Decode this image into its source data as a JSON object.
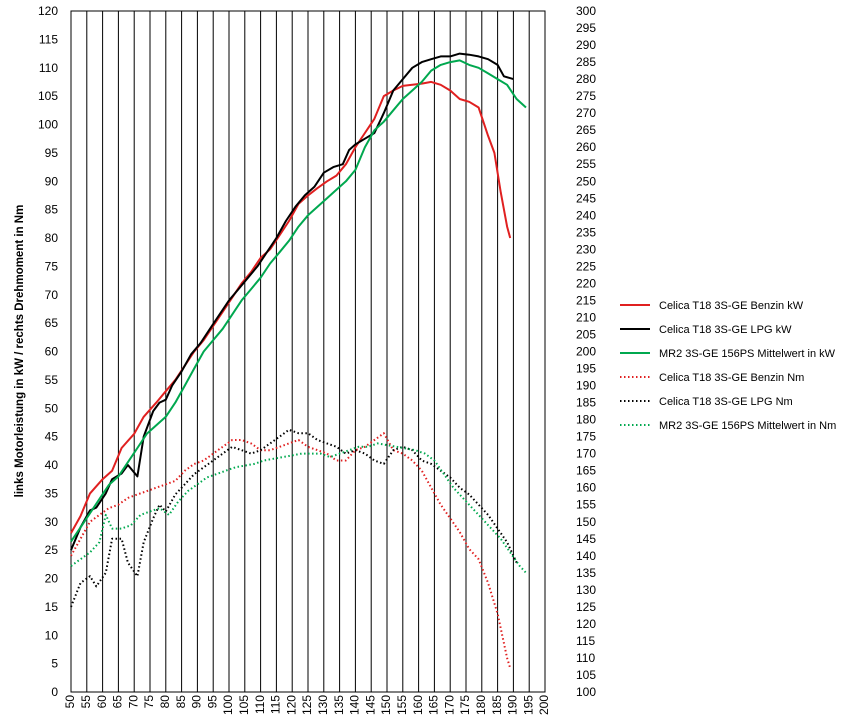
{
  "chart_data": {
    "type": "line",
    "title": "",
    "xlabel": "",
    "ylabel": "links Motorleistung in kW / rechts Drehmoment in Nm",
    "xlim": [
      50,
      200
    ],
    "ylim": [
      0,
      120
    ],
    "y2lim": [
      100,
      300
    ],
    "x_ticks": [
      50,
      55,
      60,
      65,
      70,
      75,
      80,
      85,
      90,
      95,
      100,
      105,
      110,
      115,
      120,
      125,
      130,
      135,
      140,
      145,
      150,
      155,
      160,
      165,
      170,
      175,
      180,
      185,
      190,
      195,
      200
    ],
    "y_ticks": [
      0,
      5,
      10,
      15,
      20,
      25,
      30,
      35,
      40,
      45,
      50,
      55,
      60,
      65,
      70,
      75,
      80,
      85,
      90,
      95,
      100,
      105,
      110,
      115,
      120
    ],
    "y2_ticks": [
      100,
      105,
      110,
      115,
      120,
      125,
      130,
      135,
      140,
      145,
      150,
      155,
      160,
      165,
      170,
      175,
      180,
      185,
      190,
      195,
      200,
      205,
      210,
      215,
      220,
      225,
      230,
      235,
      240,
      245,
      250,
      255,
      260,
      265,
      270,
      275,
      280,
      285,
      290,
      295,
      300
    ],
    "grid": "vertical",
    "legend_position": "right",
    "series": [
      {
        "name": "Celica T18 3S-GE Benzin kW",
        "axis": "left",
        "color": "#e02020",
        "style": "solid",
        "points": [
          [
            50,
            28
          ],
          [
            53,
            31
          ],
          [
            56,
            35
          ],
          [
            60,
            37.5
          ],
          [
            63,
            39
          ],
          [
            66,
            43
          ],
          [
            70,
            45.5
          ],
          [
            73,
            48.5
          ],
          [
            77,
            51
          ],
          [
            80,
            53
          ],
          [
            83,
            55
          ],
          [
            86,
            57.5
          ],
          [
            89,
            60
          ],
          [
            92,
            62
          ],
          [
            95,
            64.5
          ],
          [
            98,
            67
          ],
          [
            101,
            69.5
          ],
          [
            104,
            72
          ],
          [
            107,
            74
          ],
          [
            110,
            76.5
          ],
          [
            113,
            78
          ],
          [
            116,
            80.5
          ],
          [
            119,
            83
          ],
          [
            122,
            86
          ],
          [
            125,
            87.5
          ],
          [
            128,
            88.8
          ],
          [
            131,
            90
          ],
          [
            134,
            91
          ],
          [
            137,
            93
          ],
          [
            140,
            96
          ],
          [
            143,
            98.5
          ],
          [
            146,
            101
          ],
          [
            149,
            105
          ],
          [
            152,
            106
          ],
          [
            155,
            106.8
          ],
          [
            158,
            107
          ],
          [
            161,
            107.2
          ],
          [
            164,
            107.5
          ],
          [
            167,
            107
          ],
          [
            170,
            106
          ],
          [
            173,
            104.5
          ],
          [
            176,
            104
          ],
          [
            179,
            103
          ],
          [
            182,
            98
          ],
          [
            184,
            95
          ],
          [
            186,
            88
          ],
          [
            188,
            82
          ],
          [
            189,
            80
          ]
        ]
      },
      {
        "name": "Celica T18 3S-GE LPG kW",
        "axis": "left",
        "color": "#000000",
        "style": "solid",
        "points": [
          [
            50,
            25
          ],
          [
            53,
            29
          ],
          [
            56,
            32
          ],
          [
            58,
            32.5
          ],
          [
            61,
            35
          ],
          [
            63,
            37.5
          ],
          [
            66,
            38.5
          ],
          [
            68,
            40
          ],
          [
            71,
            38
          ],
          [
            73,
            45
          ],
          [
            76,
            49.5
          ],
          [
            78,
            51
          ],
          [
            80,
            51.5
          ],
          [
            82,
            54
          ],
          [
            85,
            56.5
          ],
          [
            88,
            59.5
          ],
          [
            91,
            61.5
          ],
          [
            94,
            64
          ],
          [
            97,
            66.5
          ],
          [
            100,
            69
          ],
          [
            103,
            71
          ],
          [
            106,
            73
          ],
          [
            109,
            75
          ],
          [
            112,
            77.5
          ],
          [
            115,
            80
          ],
          [
            118,
            83
          ],
          [
            121,
            85.5
          ],
          [
            124,
            87.5
          ],
          [
            127,
            89
          ],
          [
            130,
            91.5
          ],
          [
            133,
            92.5
          ],
          [
            136,
            93
          ],
          [
            138,
            95.5
          ],
          [
            140,
            96.5
          ],
          [
            143,
            97.5
          ],
          [
            146,
            98.5
          ],
          [
            149,
            102
          ],
          [
            152,
            106
          ],
          [
            155,
            108
          ],
          [
            158,
            110
          ],
          [
            161,
            111
          ],
          [
            164,
            111.5
          ],
          [
            167,
            112
          ],
          [
            170,
            112
          ],
          [
            173,
            112.5
          ],
          [
            176,
            112.3
          ],
          [
            179,
            112
          ],
          [
            182,
            111.5
          ],
          [
            185,
            110.5
          ],
          [
            187,
            108.5
          ],
          [
            190,
            108
          ]
        ]
      },
      {
        "name": "MR2 3S-GE 156PS Mittelwert in kW",
        "axis": "left",
        "color": "#00a84f",
        "style": "solid",
        "points": [
          [
            50,
            26.5
          ],
          [
            53,
            29
          ],
          [
            56,
            31.5
          ],
          [
            59,
            34
          ],
          [
            62,
            36.5
          ],
          [
            65,
            38
          ],
          [
            68,
            40.5
          ],
          [
            71,
            43
          ],
          [
            74,
            45.5
          ],
          [
            77,
            47
          ],
          [
            80,
            48.5
          ],
          [
            83,
            51
          ],
          [
            86,
            54
          ],
          [
            89,
            57
          ],
          [
            92,
            60
          ],
          [
            95,
            62
          ],
          [
            98,
            64
          ],
          [
            101,
            66.5
          ],
          [
            104,
            69
          ],
          [
            107,
            71
          ],
          [
            110,
            73
          ],
          [
            113,
            75.5
          ],
          [
            116,
            77.5
          ],
          [
            119,
            79.5
          ],
          [
            122,
            82
          ],
          [
            125,
            84
          ],
          [
            128,
            85.5
          ],
          [
            131,
            87
          ],
          [
            134,
            88.5
          ],
          [
            137,
            90
          ],
          [
            140,
            92
          ],
          [
            143,
            96
          ],
          [
            146,
            99
          ],
          [
            149,
            100.5
          ],
          [
            152,
            102.5
          ],
          [
            155,
            104.5
          ],
          [
            158,
            106
          ],
          [
            161,
            107.5
          ],
          [
            164,
            109.5
          ],
          [
            167,
            110.5
          ],
          [
            170,
            111
          ],
          [
            173,
            111.3
          ],
          [
            176,
            110.5
          ],
          [
            179,
            110
          ],
          [
            182,
            109
          ],
          [
            185,
            108
          ],
          [
            188,
            107
          ],
          [
            191,
            104.5
          ],
          [
            194,
            103
          ]
        ]
      },
      {
        "name": "Celica T18 3S-GE Benzin Nm",
        "axis": "right",
        "color": "#e02020",
        "style": "dotted",
        "points": [
          [
            50,
            140
          ],
          [
            53,
            145
          ],
          [
            56,
            150
          ],
          [
            59,
            152
          ],
          [
            62,
            154
          ],
          [
            65,
            155
          ],
          [
            68,
            157
          ],
          [
            71,
            158
          ],
          [
            74,
            159
          ],
          [
            77,
            160
          ],
          [
            80,
            161
          ],
          [
            83,
            162
          ],
          [
            86,
            165
          ],
          [
            89,
            167
          ],
          [
            92,
            168
          ],
          [
            95,
            170
          ],
          [
            98,
            172
          ],
          [
            101,
            174
          ],
          [
            104,
            174
          ],
          [
            107,
            173
          ],
          [
            110,
            171
          ],
          [
            113,
            171
          ],
          [
            116,
            172
          ],
          [
            119,
            173
          ],
          [
            122,
            174
          ],
          [
            125,
            172
          ],
          [
            128,
            171
          ],
          [
            131,
            170
          ],
          [
            134,
            168
          ],
          [
            137,
            168
          ],
          [
            140,
            171
          ],
          [
            143,
            172
          ],
          [
            146,
            174
          ],
          [
            149,
            176
          ],
          [
            152,
            171
          ],
          [
            155,
            170
          ],
          [
            158,
            168
          ],
          [
            161,
            165
          ],
          [
            164,
            160
          ],
          [
            167,
            155
          ],
          [
            170,
            151
          ],
          [
            173,
            147
          ],
          [
            176,
            142
          ],
          [
            179,
            139
          ],
          [
            182,
            132
          ],
          [
            185,
            123
          ],
          [
            188,
            110
          ],
          [
            189,
            107
          ]
        ]
      },
      {
        "name": "Celica T18 3S-GE LPG Nm",
        "axis": "right",
        "color": "#000000",
        "style": "dotted",
        "points": [
          [
            50,
            125
          ],
          [
            53,
            132
          ],
          [
            56,
            134
          ],
          [
            58,
            131
          ],
          [
            61,
            135
          ],
          [
            63,
            145
          ],
          [
            66,
            145
          ],
          [
            68,
            138
          ],
          [
            71,
            134
          ],
          [
            73,
            144
          ],
          [
            76,
            151
          ],
          [
            78,
            155
          ],
          [
            80,
            153
          ],
          [
            83,
            158
          ],
          [
            86,
            161
          ],
          [
            89,
            164
          ],
          [
            92,
            166
          ],
          [
            95,
            168
          ],
          [
            98,
            170
          ],
          [
            101,
            172
          ],
          [
            104,
            171
          ],
          [
            107,
            170
          ],
          [
            110,
            171
          ],
          [
            113,
            173
          ],
          [
            116,
            175
          ],
          [
            119,
            177
          ],
          [
            122,
            176
          ],
          [
            125,
            176
          ],
          [
            128,
            174
          ],
          [
            131,
            173
          ],
          [
            134,
            172
          ],
          [
            137,
            170
          ],
          [
            140,
            171
          ],
          [
            143,
            170
          ],
          [
            146,
            168
          ],
          [
            149,
            167
          ],
          [
            152,
            171
          ],
          [
            155,
            172
          ],
          [
            158,
            171
          ],
          [
            161,
            168
          ],
          [
            164,
            167
          ],
          [
            167,
            165
          ],
          [
            170,
            163
          ],
          [
            173,
            160
          ],
          [
            176,
            158
          ],
          [
            179,
            155
          ],
          [
            182,
            152
          ],
          [
            185,
            148
          ],
          [
            188,
            144
          ],
          [
            191,
            138
          ]
        ]
      },
      {
        "name": "MR2 3S-GE 156PS Mittelwert in Nm",
        "axis": "right",
        "color": "#00a84f",
        "style": "dotted",
        "points": [
          [
            50,
            137
          ],
          [
            53,
            139
          ],
          [
            56,
            141
          ],
          [
            59,
            144
          ],
          [
            61,
            152
          ],
          [
            63,
            148
          ],
          [
            66,
            148
          ],
          [
            69,
            149
          ],
          [
            72,
            152
          ],
          [
            75,
            153
          ],
          [
            78,
            154
          ],
          [
            81,
            152
          ],
          [
            84,
            156
          ],
          [
            87,
            159
          ],
          [
            90,
            161
          ],
          [
            93,
            163
          ],
          [
            96,
            164
          ],
          [
            99,
            165
          ],
          [
            102,
            166
          ],
          [
            105,
            166.5
          ],
          [
            108,
            167
          ],
          [
            111,
            168
          ],
          [
            114,
            168.5
          ],
          [
            117,
            169
          ],
          [
            120,
            169.5
          ],
          [
            123,
            170
          ],
          [
            126,
            170
          ],
          [
            129,
            170
          ],
          [
            132,
            169
          ],
          [
            135,
            170
          ],
          [
            138,
            171
          ],
          [
            141,
            172
          ],
          [
            144,
            172
          ],
          [
            147,
            173
          ],
          [
            150,
            172.5
          ],
          [
            153,
            172
          ],
          [
            156,
            171.5
          ],
          [
            159,
            171
          ],
          [
            162,
            170
          ],
          [
            165,
            168
          ],
          [
            168,
            164
          ],
          [
            171,
            160
          ],
          [
            174,
            157
          ],
          [
            177,
            154
          ],
          [
            180,
            151
          ],
          [
            183,
            148
          ],
          [
            186,
            145
          ],
          [
            189,
            141
          ],
          [
            192,
            137
          ],
          [
            194,
            135
          ]
        ]
      }
    ]
  }
}
